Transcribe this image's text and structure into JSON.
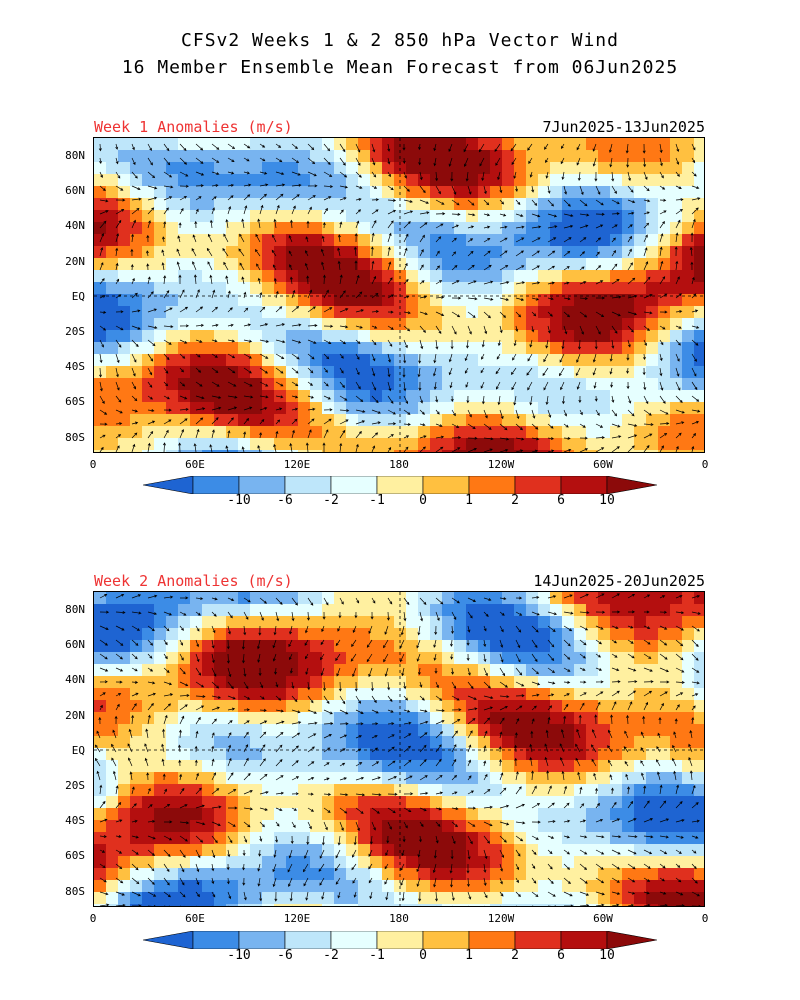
{
  "header": {
    "line1": "CFSv2 Weeks 1 & 2 850 hPa Vector Wind",
    "line2": "16 Member Ensemble Mean Forecast from 06Jun2025"
  },
  "panels": [
    {
      "label": "Week 1 Anomalies (m/s)",
      "dates": "7Jun2025-13Jun2025"
    },
    {
      "label": "Week 2 Anomalies (m/s)",
      "dates": "14Jun2025-20Jun2025"
    }
  ],
  "lat_labels": [
    "80N",
    "60N",
    "40N",
    "20N",
    "EQ",
    "20S",
    "40S",
    "60S",
    "80S"
  ],
  "lon_labels": [
    "0",
    "60E",
    "120E",
    "180",
    "120W",
    "60W",
    "0"
  ],
  "colorbar": {
    "labels": [
      "-10",
      "-6",
      "-2",
      "-1",
      "0",
      "1",
      "2",
      "6",
      "10"
    ],
    "colors": [
      "#1e64d2",
      "#3c8ce6",
      "#78b4f0",
      "#bee6fa",
      "#e6ffff",
      "#fff0a0",
      "#ffc040",
      "#ff7814",
      "#e0301e",
      "#b40f0f",
      "#8c0a0a"
    ]
  }
}
